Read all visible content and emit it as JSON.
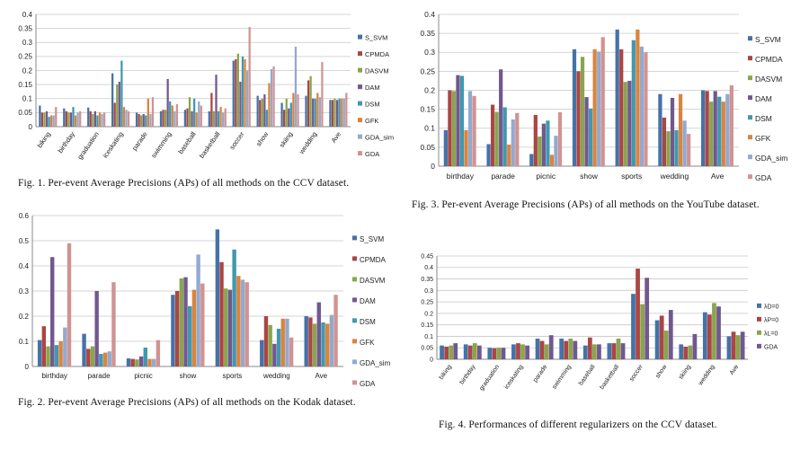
{
  "colors": {
    "S_SVM": "#4572A7",
    "CPMDA": "#AA4643",
    "DASVM": "#89A54E",
    "DAM": "#71588F",
    "DSM": "#4198AF",
    "GFK": "#DB843D",
    "GDA_sim": "#93A9CF",
    "GDA": "#D19392",
    "lD0": "#4572A7",
    "lP0": "#AA4643",
    "lL0": "#89A54E",
    "GDA4": "#71588F"
  },
  "captions": {
    "fig1": "Fig. 1.   Per-event Average Precisions (APs) of all methods on the CCV dataset.",
    "fig2": "Fig. 2.   Per-event Average Precisions (APs) of all methods on the Kodak dataset.",
    "fig3": "Fig. 3.   Per-event Average Precisions (APs) of all methods on the YouTube dataset.",
    "fig4": "Fig. 4.   Performances of different regularizers on the CCV dataset."
  },
  "chart_data": [
    {
      "id": "fig1",
      "type": "bar",
      "title": "",
      "xlabel": "",
      "ylabel": "",
      "ylim": [
        0,
        0.4
      ],
      "yticks": [
        "0",
        "0.05",
        "0.1",
        "0.15",
        "0.2",
        "0.25",
        "0.3",
        "0.35",
        "0.4"
      ],
      "grid": true,
      "legend": "right",
      "categories": [
        "biking",
        "birthday",
        "graduation",
        "iceskating",
        "parade",
        "swimming",
        "baseball",
        "basketball",
        "soccer",
        "show",
        "skiing",
        "wedding",
        "Ave"
      ],
      "series": [
        {
          "name": "S_SVM",
          "color_key": "S_SVM",
          "values": [
            0.075,
            0.065,
            0.068,
            0.19,
            0.05,
            0.055,
            0.06,
            0.055,
            0.235,
            0.11,
            0.085,
            0.11,
            0.095
          ]
        },
        {
          "name": "CPMDA",
          "color_key": "CPMDA",
          "values": [
            0.05,
            0.055,
            0.055,
            0.085,
            0.045,
            0.06,
            0.065,
            0.12,
            0.24,
            0.095,
            0.06,
            0.165,
            0.095
          ]
        },
        {
          "name": "DASVM",
          "color_key": "DASVM",
          "values": [
            0.05,
            0.05,
            0.045,
            0.15,
            0.04,
            0.06,
            0.105,
            0.055,
            0.26,
            0.1,
            0.1,
            0.18,
            0.1
          ]
        },
        {
          "name": "DAM",
          "color_key": "DAM",
          "values": [
            0.055,
            0.05,
            0.055,
            0.16,
            0.045,
            0.17,
            0.055,
            0.185,
            0.16,
            0.115,
            0.065,
            0.1,
            0.095
          ]
        },
        {
          "name": "DSM",
          "color_key": "DSM",
          "values": [
            0.035,
            0.07,
            0.04,
            0.235,
            0.04,
            0.09,
            0.1,
            0.055,
            0.25,
            0.06,
            0.085,
            0.1,
            0.1
          ]
        },
        {
          "name": "GFK",
          "color_key": "GFK",
          "values": [
            0.04,
            0.04,
            0.05,
            0.07,
            0.1,
            0.075,
            0.05,
            0.07,
            0.24,
            0.155,
            0.12,
            0.12,
            0.1
          ]
        },
        {
          "name": "GDA_sim",
          "color_key": "GDA_sim",
          "values": [
            0.04,
            0.05,
            0.045,
            0.06,
            0.045,
            0.055,
            0.09,
            0.05,
            0.2,
            0.205,
            0.285,
            0.105,
            0.1
          ]
        },
        {
          "name": "GDA",
          "color_key": "GDA",
          "values": [
            0.07,
            0.055,
            0.05,
            0.055,
            0.105,
            0.08,
            0.075,
            0.065,
            0.355,
            0.215,
            0.115,
            0.23,
            0.12
          ]
        }
      ]
    },
    {
      "id": "fig2",
      "type": "bar",
      "title": "",
      "xlabel": "",
      "ylabel": "",
      "ylim": [
        0,
        0.6
      ],
      "yticks": [
        "0",
        "0.1",
        "0.2",
        "0.3",
        "0.4",
        "0.5",
        "0.6"
      ],
      "grid": true,
      "legend": "right",
      "categories": [
        "birthday",
        "parade",
        "picnic",
        "show",
        "sports",
        "wedding",
        "Ave"
      ],
      "series": [
        {
          "name": "S_SVM",
          "color_key": "S_SVM",
          "values": [
            0.105,
            0.13,
            0.032,
            0.285,
            0.545,
            0.105,
            0.2
          ]
        },
        {
          "name": "CPMDA",
          "color_key": "CPMDA",
          "values": [
            0.16,
            0.07,
            0.03,
            0.3,
            0.415,
            0.2,
            0.195
          ]
        },
        {
          "name": "DASVM",
          "color_key": "DASVM",
          "values": [
            0.08,
            0.08,
            0.028,
            0.35,
            0.31,
            0.165,
            0.17
          ]
        },
        {
          "name": "DAM",
          "color_key": "DAM",
          "values": [
            0.435,
            0.3,
            0.04,
            0.355,
            0.305,
            0.09,
            0.255
          ]
        },
        {
          "name": "DSM",
          "color_key": "DSM",
          "values": [
            0.085,
            0.05,
            0.075,
            0.24,
            0.465,
            0.15,
            0.175
          ]
        },
        {
          "name": "GFK",
          "color_key": "GFK",
          "values": [
            0.1,
            0.055,
            0.03,
            0.305,
            0.36,
            0.19,
            0.17
          ]
        },
        {
          "name": "GDA_sim",
          "color_key": "GDA_sim",
          "values": [
            0.155,
            0.06,
            0.03,
            0.445,
            0.345,
            0.19,
            0.205
          ]
        },
        {
          "name": "GDA",
          "color_key": "GDA",
          "values": [
            0.49,
            0.335,
            0.105,
            0.33,
            0.335,
            0.115,
            0.285
          ]
        }
      ]
    },
    {
      "id": "fig3",
      "type": "bar",
      "title": "",
      "xlabel": "",
      "ylabel": "",
      "ylim": [
        0,
        0.4
      ],
      "yticks": [
        "0",
        "0.05",
        "0.1",
        "0.15",
        "0.2",
        "0.25",
        "0.3",
        "0.35",
        "0.4"
      ],
      "grid": true,
      "legend": "right",
      "categories": [
        "birthday",
        "parade",
        "picnic",
        "show",
        "sports",
        "wedding",
        "Ave"
      ],
      "series": [
        {
          "name": "S_SVM",
          "color_key": "S_SVM",
          "values": [
            0.095,
            0.058,
            0.032,
            0.308,
            0.36,
            0.19,
            0.2
          ]
        },
        {
          "name": "CPMDA",
          "color_key": "CPMDA",
          "values": [
            0.2,
            0.162,
            0.135,
            0.25,
            0.308,
            0.128,
            0.198
          ]
        },
        {
          "name": "DASVM",
          "color_key": "DASVM",
          "values": [
            0.198,
            0.143,
            0.078,
            0.288,
            0.222,
            0.092,
            0.17
          ]
        },
        {
          "name": "DAM",
          "color_key": "DAM",
          "values": [
            0.24,
            0.255,
            0.112,
            0.182,
            0.225,
            0.18,
            0.198
          ]
        },
        {
          "name": "DSM",
          "color_key": "DSM",
          "values": [
            0.238,
            0.155,
            0.12,
            0.152,
            0.332,
            0.095,
            0.183
          ]
        },
        {
          "name": "GFK",
          "color_key": "GFK",
          "values": [
            0.095,
            0.057,
            0.03,
            0.308,
            0.36,
            0.19,
            0.17
          ]
        },
        {
          "name": "GDA_sim",
          "color_key": "GDA_sim",
          "values": [
            0.198,
            0.123,
            0.08,
            0.302,
            0.315,
            0.12,
            0.19
          ]
        },
        {
          "name": "GDA",
          "color_key": "GDA",
          "values": [
            0.185,
            0.14,
            0.142,
            0.34,
            0.3,
            0.085,
            0.213
          ]
        }
      ]
    },
    {
      "id": "fig4",
      "type": "bar",
      "title": "",
      "xlabel": "",
      "ylabel": "",
      "ylim": [
        0,
        0.45
      ],
      "yticks": [
        "0",
        "0.05",
        "0.1",
        "0.15",
        "0.2",
        "0.25",
        "0.3",
        "0.35",
        "0.4",
        "0.45"
      ],
      "grid": true,
      "legend": "right",
      "categories": [
        "biking",
        "birthday",
        "graduation",
        "iceskating",
        "parade",
        "swimming",
        "baseball",
        "basketball",
        "soccer",
        "show",
        "skiing",
        "wedding",
        "Ave"
      ],
      "series": [
        {
          "name": "λD=0",
          "color_key": "lD0",
          "values": [
            0.06,
            0.065,
            0.05,
            0.065,
            0.09,
            0.09,
            0.06,
            0.07,
            0.285,
            0.17,
            0.065,
            0.205,
            0.1
          ]
        },
        {
          "name": "λP=0",
          "color_key": "lP0",
          "values": [
            0.055,
            0.06,
            0.048,
            0.07,
            0.08,
            0.08,
            0.095,
            0.07,
            0.395,
            0.19,
            0.055,
            0.195,
            0.12
          ]
        },
        {
          "name": "λL=0",
          "color_key": "lL0",
          "values": [
            0.06,
            0.07,
            0.05,
            0.065,
            0.065,
            0.09,
            0.065,
            0.09,
            0.24,
            0.125,
            0.06,
            0.245,
            0.105
          ]
        },
        {
          "name": "GDA",
          "color_key": "GDA4",
          "values": [
            0.07,
            0.06,
            0.05,
            0.06,
            0.105,
            0.08,
            0.065,
            0.07,
            0.355,
            0.215,
            0.11,
            0.23,
            0.12
          ]
        }
      ]
    }
  ]
}
